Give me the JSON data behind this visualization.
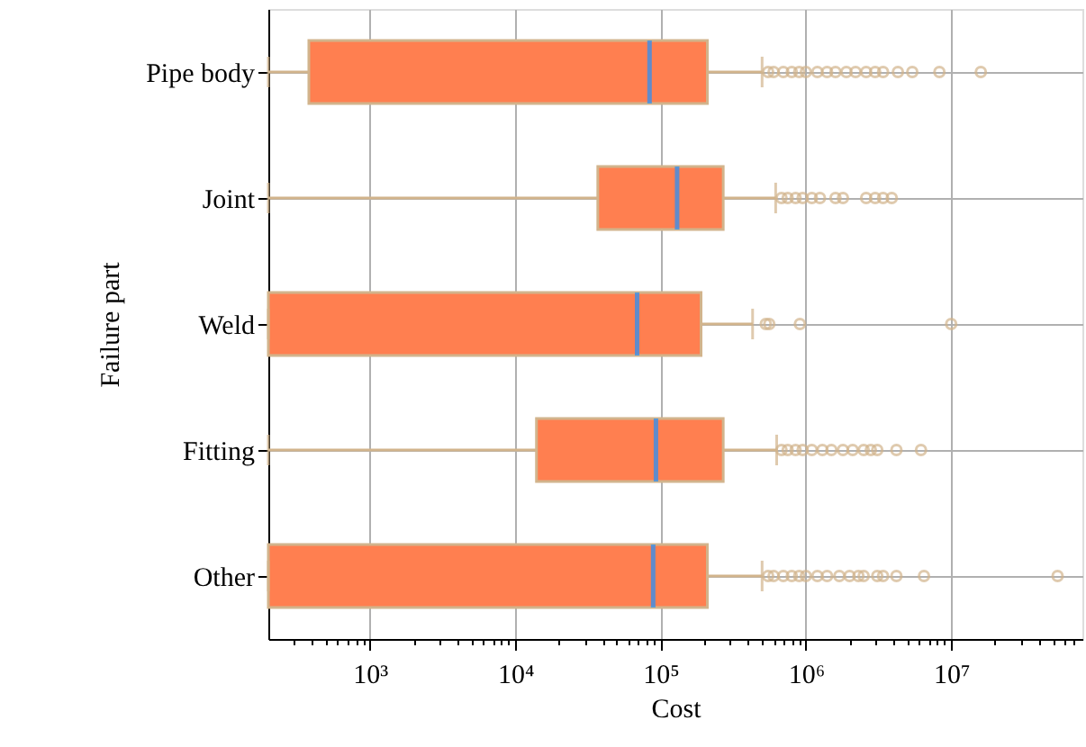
{
  "chart_data": {
    "type": "box",
    "orientation": "horizontal",
    "xlabel": "Cost",
    "ylabel": "Failure part",
    "log": "x",
    "grid": true,
    "categories": [
      "Pipe body",
      "Joint",
      "Weld",
      "Fitting",
      "Other"
    ],
    "xlim": [
      200,
      80000000
    ],
    "xticks": [
      {
        "value": 300,
        "label": null
      },
      {
        "value": 400,
        "label": null
      },
      {
        "value": 500,
        "label": null
      },
      {
        "value": 600,
        "label": null
      },
      {
        "value": 700,
        "label": null
      },
      {
        "value": 800,
        "label": null
      },
      {
        "value": 900,
        "label": null
      },
      {
        "value": 1000,
        "label": "10³"
      },
      {
        "value": 2000,
        "label": null
      },
      {
        "value": 3000,
        "label": null
      },
      {
        "value": 4000,
        "label": null
      },
      {
        "value": 5000,
        "label": null
      },
      {
        "value": 6000,
        "label": null
      },
      {
        "value": 7000,
        "label": null
      },
      {
        "value": 8000,
        "label": null
      },
      {
        "value": 9000,
        "label": null
      },
      {
        "value": 10000,
        "label": "10⁴"
      },
      {
        "value": 20000,
        "label": null
      },
      {
        "value": 30000,
        "label": null
      },
      {
        "value": 40000,
        "label": null
      },
      {
        "value": 50000,
        "label": null
      },
      {
        "value": 60000,
        "label": null
      },
      {
        "value": 70000,
        "label": null
      },
      {
        "value": 80000,
        "label": null
      },
      {
        "value": 90000,
        "label": null
      },
      {
        "value": 100000,
        "label": "10⁵"
      },
      {
        "value": 200000,
        "label": null
      },
      {
        "value": 300000,
        "label": null
      },
      {
        "value": 400000,
        "label": null
      },
      {
        "value": 500000,
        "label": null
      },
      {
        "value": 600000,
        "label": null
      },
      {
        "value": 700000,
        "label": null
      },
      {
        "value": 800000,
        "label": null
      },
      {
        "value": 900000,
        "label": null
      },
      {
        "value": 1000000,
        "label": "10⁶"
      },
      {
        "value": 2000000,
        "label": null
      },
      {
        "value": 3000000,
        "label": null
      },
      {
        "value": 4000000,
        "label": null
      },
      {
        "value": 5000000,
        "label": null
      },
      {
        "value": 6000000,
        "label": null
      },
      {
        "value": 7000000,
        "label": null
      },
      {
        "value": 8000000,
        "label": null
      },
      {
        "value": 9000000,
        "label": null
      },
      {
        "value": 10000000,
        "label": "10⁷"
      },
      {
        "value": 20000000,
        "label": null
      },
      {
        "value": 30000000,
        "label": null
      },
      {
        "value": 40000000,
        "label": null
      },
      {
        "value": 50000000,
        "label": null
      },
      {
        "value": 60000000,
        "label": null
      },
      {
        "value": 70000000,
        "label": null
      }
    ],
    "series": [
      {
        "color": "#ff7f50",
        "boxes": [
          {
            "low": 200,
            "q1": 380,
            "median": 84000,
            "q3": 210000,
            "high": 500000,
            "outliers": [
              550000,
              600000,
              700000,
              800000,
              900000,
              1000000,
              1200000,
              1400000,
              1600000,
              1900000,
              2200000,
              2600000,
              3000000,
              3400000,
              4300000,
              5400000,
              8300000,
              16000000
            ]
          },
          {
            "low": 200,
            "q1": 37000,
            "median": 130000,
            "q3": 270000,
            "high": 620000,
            "outliers": [
              680000,
              750000,
              850000,
              950000,
              1100000,
              1250000,
              1600000,
              1800000,
              2600000,
              3000000,
              3400000,
              3900000
            ]
          },
          {
            "low": 200,
            "q1": 200,
            "median": 69000,
            "q3": 190000,
            "high": 430000,
            "outliers": [
              530000,
              560000,
              910000,
              10000000
            ]
          },
          {
            "low": 200,
            "q1": 14000,
            "median": 93000,
            "q3": 270000,
            "high": 630000,
            "outliers": [
              680000,
              750000,
              850000,
              950000,
              1100000,
              1300000,
              1500000,
              1800000,
              2100000,
              2500000,
              2800000,
              3100000,
              4200000,
              6200000
            ]
          },
          {
            "low": 200,
            "q1": 200,
            "median": 89000,
            "q3": 210000,
            "high": 500000,
            "outliers": [
              550000,
              600000,
              700000,
              800000,
              900000,
              1000000,
              1200000,
              1400000,
              1700000,
              2000000,
              2300000,
              2500000,
              3100000,
              3400000,
              4200000,
              6500000,
              54000000
            ]
          }
        ]
      }
    ]
  }
}
